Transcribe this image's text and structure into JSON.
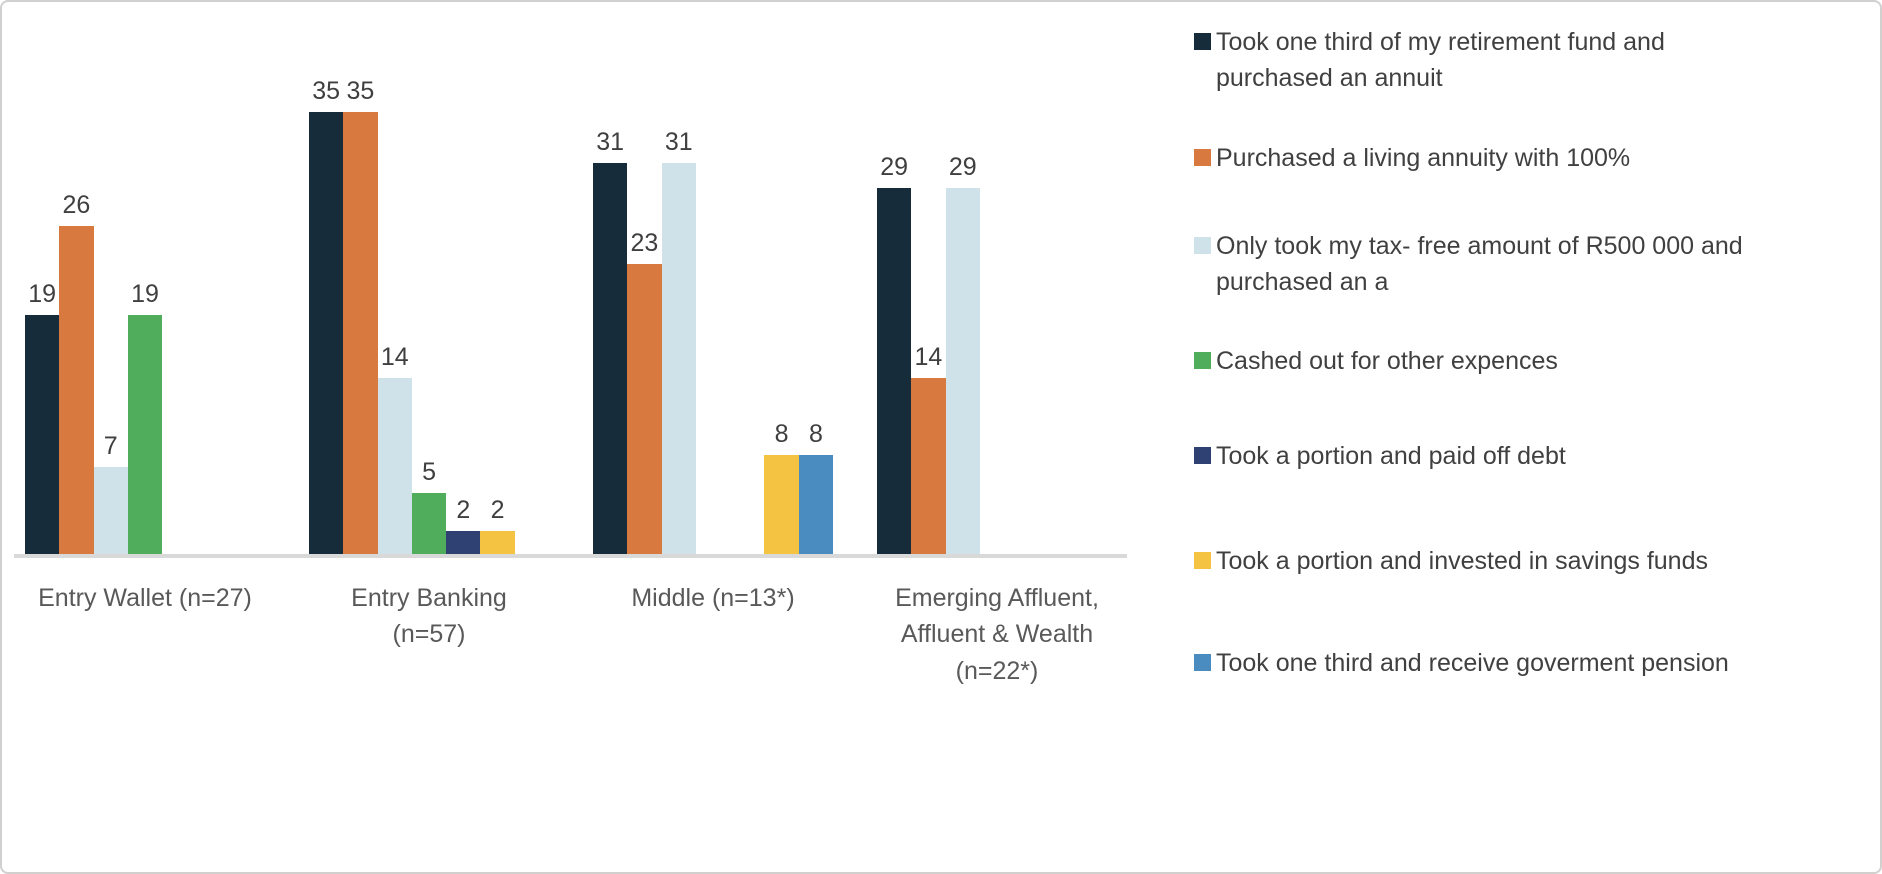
{
  "chart_data": {
    "type": "bar",
    "title": "",
    "xlabel": "",
    "ylabel": "",
    "ylim": [
      0,
      35
    ],
    "grid": false,
    "legend_position": "right",
    "data_labels": "value shown above each non-zero bar",
    "axis_line_color": "#D9D9D9",
    "value_label_color": "#3F3F3F",
    "category_label_color": "#595959",
    "legend_text_color": "#404040",
    "categories": [
      "Entry Wallet (n=27)",
      "Entry Banking (n=57)",
      "Middle (n=13*)",
      "Emerging Affluent, Affluent & Wealth (n=22*)"
    ],
    "categories_lines": [
      [
        "Entry Wallet (n=27)"
      ],
      [
        "Entry Banking",
        "(n=57)"
      ],
      [
        "Middle (n=13*)"
      ],
      [
        "Emerging Affluent,",
        "Affluent & Wealth",
        "(n=22*)"
      ]
    ],
    "series": [
      {
        "name": "Took one third of my retirement fund and purchased an annuit",
        "legend_lines": [
          "Took one third of my retirement fund and",
          "purchased an annuit"
        ],
        "color": "#172C3B",
        "values": [
          19,
          35,
          31,
          29
        ]
      },
      {
        "name": "Purchased a living annuity with 100%",
        "legend_lines": [
          "Purchased a living annuity with 100%"
        ],
        "color": "#D8793F",
        "values": [
          26,
          35,
          23,
          14
        ]
      },
      {
        "name": "Only took my tax- free amount of R500 000 and purchased an a",
        "legend_lines": [
          "Only took my tax- free amount of R500 000 and",
          "purchased an a"
        ],
        "color": "#CFE2EA",
        "values": [
          7,
          14,
          31,
          29
        ]
      },
      {
        "name": "Cashed out for other expences",
        "legend_lines": [
          "Cashed out for other expences"
        ],
        "color": "#4FAD5B",
        "values": [
          19,
          5,
          0,
          0
        ]
      },
      {
        "name": "Took a portion and paid off debt",
        "legend_lines": [
          "Took a portion and paid off debt"
        ],
        "color": "#2F4172",
        "values": [
          0,
          2,
          0,
          0
        ]
      },
      {
        "name": "Took a portion and invested in savings funds",
        "legend_lines": [
          "Took a portion and invested in savings funds"
        ],
        "color": "#F4C342",
        "values": [
          0,
          2,
          8,
          0
        ]
      },
      {
        "name": "Took one third and receive goverment pension",
        "legend_lines": [
          "Took one third and receive goverment pension"
        ],
        "color": "#4A8CBF",
        "values": [
          0,
          0,
          8,
          0
        ]
      }
    ]
  }
}
